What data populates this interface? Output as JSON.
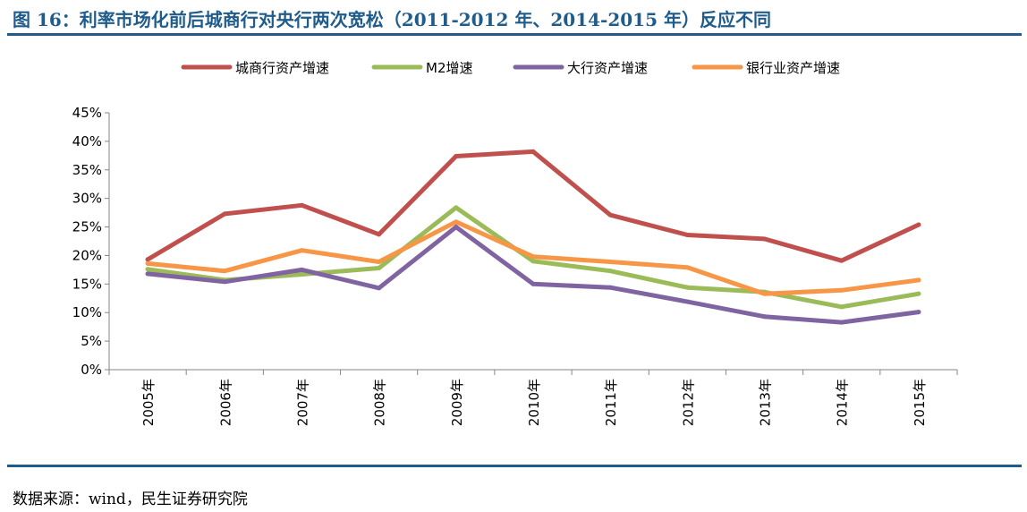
{
  "figure": {
    "title": "图 16：利率市场化前后城商行对央行两次宽松（2011-2012 年、2014-2015 年）反应不同",
    "source": "数据来源：wind，民生证券研究院"
  },
  "chart_data": {
    "type": "line",
    "title": "",
    "xlabel": "",
    "ylabel": "",
    "categories": [
      "2005年",
      "2006年",
      "2007年",
      "2008年",
      "2009年",
      "2010年",
      "2011年",
      "2012年",
      "2013年",
      "2014年",
      "2015年"
    ],
    "ylim": [
      0,
      45
    ],
    "yticks": [
      0,
      5,
      10,
      15,
      20,
      25,
      30,
      35,
      40,
      45
    ],
    "ytick_labels": [
      "0%",
      "5%",
      "10%",
      "15%",
      "20%",
      "25%",
      "30%",
      "35%",
      "40%",
      "45%"
    ],
    "unit": "%",
    "grid": false,
    "legend_position": "top",
    "series": [
      {
        "name": "城商行资产增速",
        "color": "#c0504d",
        "values": [
          19.3,
          27.3,
          28.8,
          23.7,
          37.4,
          38.2,
          27.1,
          23.6,
          22.9,
          19.1,
          25.4
        ]
      },
      {
        "name": "M2增速",
        "color": "#9bbb59",
        "values": [
          17.6,
          15.7,
          16.7,
          17.8,
          28.4,
          19.0,
          17.3,
          14.4,
          13.6,
          11.0,
          13.3
        ]
      },
      {
        "name": "大行资产增速",
        "color": "#8064a2",
        "values": [
          16.8,
          15.4,
          17.5,
          14.3,
          25.0,
          15.0,
          14.4,
          11.9,
          9.3,
          8.3,
          10.1
        ]
      },
      {
        "name": "银行业资产增速",
        "color": "#f79646",
        "values": [
          18.6,
          17.3,
          20.9,
          18.9,
          25.9,
          19.8,
          18.9,
          17.9,
          13.3,
          13.9,
          15.7
        ]
      }
    ]
  }
}
